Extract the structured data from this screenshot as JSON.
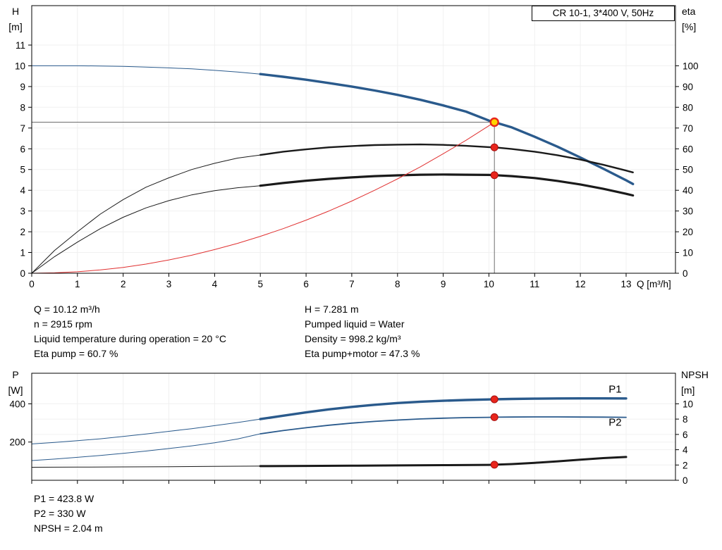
{
  "colors": {
    "curve_blue": "#2a5a8c",
    "curve_black": "#1a1a1a",
    "system_red": "#e03030",
    "marker_red": "#e8251c",
    "duty_yellow": "#ffd400",
    "crosshair": "#6e6e6e",
    "grid": "#f0f0f0"
  },
  "info_panel": {
    "left": [
      "Q = 10.12 m³/h",
      "n = 2915 rpm",
      "Liquid temperature during operation = 20 °C",
      "Eta pump = 60.7 %"
    ],
    "right": [
      "H = 7.281 m",
      "Pumped liquid = Water",
      "Density = 998.2 kg/m³",
      "Eta pump+motor = 47.3 %"
    ]
  },
  "results_panel": [
    "P1 = 423.8 W",
    "P2 = 330 W",
    "NPSH = 2.04 m"
  ],
  "chart_data": [
    {
      "type": "line",
      "title": "CR 10-1, 3*400 V, 50Hz",
      "x_axis": {
        "label": "Q [m³/h]",
        "min": 0,
        "max": 14.08,
        "ticks": [
          0,
          1,
          2,
          3,
          4,
          5,
          6,
          7,
          8,
          9,
          10,
          11,
          12,
          13
        ]
      },
      "y_left": {
        "label": "H [m]",
        "min": 0,
        "max": 12.9,
        "ticks": [
          0,
          1,
          2,
          3,
          4,
          5,
          6,
          7,
          8,
          9,
          10,
          11
        ]
      },
      "y_right": {
        "label": "eta [%]",
        "ticks": [
          0,
          10,
          20,
          30,
          40,
          50,
          60,
          70,
          80,
          90,
          100
        ],
        "scale_to_left": 0.1
      },
      "duty_point": {
        "q": 10.12,
        "h": 7.281
      },
      "series": [
        {
          "name": "qh-curve-low-flow",
          "color_key": "curve_blue",
          "width": 1,
          "scale": 1,
          "points": [
            [
              0,
              10.0
            ],
            [
              0.5,
              10.0
            ],
            [
              1,
              10.0
            ],
            [
              1.5,
              9.99
            ],
            [
              2,
              9.97
            ],
            [
              2.5,
              9.94
            ],
            [
              3,
              9.9
            ],
            [
              3.5,
              9.85
            ],
            [
              4,
              9.78
            ],
            [
              4.5,
              9.7
            ],
            [
              5,
              9.6
            ]
          ]
        },
        {
          "name": "qh-curve",
          "color_key": "curve_blue",
          "width": 3.4,
          "scale": 1,
          "points": [
            [
              5,
              9.6
            ],
            [
              5.5,
              9.47
            ],
            [
              6,
              9.33
            ],
            [
              6.5,
              9.17
            ],
            [
              7,
              9.0
            ],
            [
              7.5,
              8.81
            ],
            [
              8,
              8.6
            ],
            [
              8.5,
              8.36
            ],
            [
              9,
              8.09
            ],
            [
              9.5,
              7.79
            ],
            [
              10,
              7.36
            ],
            [
              10.12,
              7.281
            ],
            [
              10.5,
              7.03
            ],
            [
              11,
              6.58
            ],
            [
              11.5,
              6.1
            ],
            [
              12,
              5.58
            ],
            [
              12.5,
              5.04
            ],
            [
              13,
              4.48
            ],
            [
              13.15,
              4.3
            ]
          ]
        },
        {
          "name": "eta-pump-curve-low-flow",
          "color_key": "curve_black",
          "width": 1,
          "scale": 0.1,
          "points": [
            [
              0,
              0
            ],
            [
              0.5,
              11
            ],
            [
              1,
              20
            ],
            [
              1.5,
              28.5
            ],
            [
              2,
              35.5
            ],
            [
              2.5,
              41.5
            ],
            [
              3,
              46
            ],
            [
              3.5,
              50
            ],
            [
              4,
              53
            ],
            [
              4.5,
              55.5
            ],
            [
              5,
              57
            ]
          ]
        },
        {
          "name": "eta-pump-curve",
          "color_key": "curve_black",
          "width": 2.4,
          "scale": 0.1,
          "points": [
            [
              5,
              57
            ],
            [
              5.5,
              58.6
            ],
            [
              6,
              59.7
            ],
            [
              6.5,
              60.7
            ],
            [
              7,
              61.3
            ],
            [
              7.5,
              61.8
            ],
            [
              8,
              62
            ],
            [
              8.5,
              62.1
            ],
            [
              9,
              61.9
            ],
            [
              9.5,
              61.4
            ],
            [
              10,
              60.8
            ],
            [
              10.12,
              60.7
            ],
            [
              10.5,
              59.9
            ],
            [
              11,
              58.6
            ],
            [
              11.5,
              56.9
            ],
            [
              12,
              54.8
            ],
            [
              12.5,
              52.3
            ],
            [
              13,
              49.5
            ],
            [
              13.15,
              48.6
            ]
          ]
        },
        {
          "name": "eta-pump-motor-curve-low-flow",
          "color_key": "curve_black",
          "width": 1,
          "scale": 0.1,
          "points": [
            [
              0,
              0
            ],
            [
              0.5,
              8
            ],
            [
              1,
              15
            ],
            [
              1.5,
              21.5
            ],
            [
              2,
              27
            ],
            [
              2.5,
              31.5
            ],
            [
              3,
              35
            ],
            [
              3.5,
              37.8
            ],
            [
              4,
              39.8
            ],
            [
              4.5,
              41.2
            ],
            [
              5,
              42.2
            ]
          ]
        },
        {
          "name": "eta-pump-motor-curve",
          "color_key": "curve_black",
          "width": 3.2,
          "scale": 0.1,
          "points": [
            [
              5,
              42.2
            ],
            [
              5.5,
              43.5
            ],
            [
              6,
              44.6
            ],
            [
              6.5,
              45.5
            ],
            [
              7,
              46.2
            ],
            [
              7.5,
              46.8
            ],
            [
              8,
              47.2
            ],
            [
              8.5,
              47.5
            ],
            [
              9,
              47.6
            ],
            [
              9.5,
              47.5
            ],
            [
              10,
              47.4
            ],
            [
              10.12,
              47.3
            ],
            [
              10.5,
              46.8
            ],
            [
              11,
              45.9
            ],
            [
              11.5,
              44.5
            ],
            [
              12,
              42.8
            ],
            [
              12.5,
              40.7
            ],
            [
              13,
              38.3
            ],
            [
              13.15,
              37.5
            ]
          ]
        },
        {
          "name": "system-curve",
          "color_key": "system_red",
          "width": 1,
          "scale": 1,
          "points": [
            [
              0,
              0
            ],
            [
              0.5,
              0.02
            ],
            [
              1,
              0.07
            ],
            [
              1.5,
              0.16
            ],
            [
              2,
              0.28
            ],
            [
              2.5,
              0.44
            ],
            [
              3,
              0.64
            ],
            [
              3.5,
              0.87
            ],
            [
              4,
              1.14
            ],
            [
              4.5,
              1.44
            ],
            [
              5,
              1.78
            ],
            [
              5.5,
              2.15
            ],
            [
              6,
              2.56
            ],
            [
              6.5,
              3.0
            ],
            [
              7,
              3.48
            ],
            [
              7.5,
              4.0
            ],
            [
              8,
              4.55
            ],
            [
              8.5,
              5.13
            ],
            [
              9,
              5.76
            ],
            [
              9.5,
              6.41
            ],
            [
              10,
              7.11
            ],
            [
              10.12,
              7.281
            ]
          ]
        }
      ],
      "markers": [
        {
          "name": "duty-point-marker",
          "q": 10.12,
          "value": 7.281,
          "scale": 1,
          "style": "ring"
        },
        {
          "name": "eta-pump-point",
          "q": 10.12,
          "value": 60.7,
          "scale": 0.1,
          "style": "dot"
        },
        {
          "name": "eta-pump-motor-point",
          "q": 10.12,
          "value": 47.3,
          "scale": 0.1,
          "style": "dot"
        }
      ]
    },
    {
      "type": "line",
      "x_axis": {
        "min": 0,
        "max": 14.08,
        "ticks": [
          0,
          1,
          2,
          3,
          4,
          5,
          6,
          7,
          8,
          9,
          10,
          11,
          12,
          13
        ],
        "show_labels": false
      },
      "y_left": {
        "label": "P [W]",
        "min": 0,
        "max": 560,
        "ticks": [
          200,
          400
        ]
      },
      "y_right": {
        "label": "NPSH [m]",
        "ticks": [
          0,
          2,
          4,
          6,
          8,
          10
        ],
        "scale_to_left": 40
      },
      "series": [
        {
          "name": "p1-curve-low-flow",
          "color_key": "curve_blue",
          "width": 1,
          "scale": 1,
          "points": [
            [
              0,
              190
            ],
            [
              0.5,
              198
            ],
            [
              1,
              207
            ],
            [
              1.5,
              217
            ],
            [
              2,
              229
            ],
            [
              2.5,
              242
            ],
            [
              3,
              256
            ],
            [
              3.5,
              270
            ],
            [
              4,
              286
            ],
            [
              4.5,
              302
            ],
            [
              5,
              320
            ]
          ]
        },
        {
          "name": "p1-curve",
          "color_key": "curve_blue",
          "width": 3.4,
          "scale": 1,
          "points": [
            [
              5,
              320
            ],
            [
              5.5,
              338
            ],
            [
              6,
              355
            ],
            [
              6.5,
              371
            ],
            [
              7,
              384
            ],
            [
              7.5,
              395
            ],
            [
              8,
              404
            ],
            [
              8.5,
              411
            ],
            [
              9,
              416
            ],
            [
              9.5,
              420
            ],
            [
              10,
              423
            ],
            [
              10.12,
              423.8
            ],
            [
              10.5,
              425.5
            ],
            [
              11,
              427
            ],
            [
              11.5,
              428
            ],
            [
              12,
              428.5
            ],
            [
              12.5,
              428.5
            ],
            [
              13,
              428
            ]
          ]
        },
        {
          "name": "p2-curve-low-flow",
          "color_key": "curve_blue",
          "width": 1,
          "scale": 1,
          "points": [
            [
              0,
              103
            ],
            [
              0.5,
              111
            ],
            [
              1,
              120
            ],
            [
              1.5,
              130
            ],
            [
              2,
              141
            ],
            [
              2.5,
              153
            ],
            [
              3,
              166
            ],
            [
              3.5,
              180
            ],
            [
              4,
              196
            ],
            [
              4.5,
              216
            ],
            [
              5,
              243
            ]
          ]
        },
        {
          "name": "p2-curve",
          "color_key": "curve_blue",
          "width": 1.8,
          "scale": 1,
          "points": [
            [
              5,
              243
            ],
            [
              5.5,
              260
            ],
            [
              6,
              275
            ],
            [
              6.5,
              288
            ],
            [
              7,
              299
            ],
            [
              7.5,
              308
            ],
            [
              8,
              315
            ],
            [
              8.5,
              321
            ],
            [
              9,
              325
            ],
            [
              9.5,
              328
            ],
            [
              10,
              329.5
            ],
            [
              10.12,
              330
            ],
            [
              10.5,
              330.8
            ],
            [
              11,
              331.5
            ],
            [
              11.5,
              331.5
            ],
            [
              12,
              331
            ],
            [
              12.5,
              330.3
            ],
            [
              13,
              329.5
            ]
          ]
        },
        {
          "name": "npsh-curve-low-flow",
          "color_key": "curve_black",
          "width": 1,
          "scale": 40,
          "points": [
            [
              0,
              1.7
            ],
            [
              1,
              1.72
            ],
            [
              2,
              1.75
            ],
            [
              3,
              1.78
            ],
            [
              4,
              1.81
            ],
            [
              5,
              1.85
            ]
          ]
        },
        {
          "name": "npsh-curve",
          "color_key": "curve_black",
          "width": 3,
          "scale": 40,
          "points": [
            [
              5,
              1.85
            ],
            [
              6,
              1.88
            ],
            [
              7,
              1.91
            ],
            [
              8,
              1.94
            ],
            [
              9,
              1.98
            ],
            [
              10,
              2.02
            ],
            [
              10.12,
              2.04
            ],
            [
              10.5,
              2.12
            ],
            [
              11,
              2.28
            ],
            [
              11.5,
              2.48
            ],
            [
              12,
              2.7
            ],
            [
              12.5,
              2.9
            ],
            [
              13,
              3.05
            ]
          ]
        }
      ],
      "markers": [
        {
          "name": "p1-point",
          "q": 10.12,
          "value": 423.8,
          "scale": 1,
          "style": "dot"
        },
        {
          "name": "p2-point",
          "q": 10.12,
          "value": 330,
          "scale": 1,
          "style": "dot"
        },
        {
          "name": "npsh-point",
          "q": 10.12,
          "value": 2.04,
          "scale": 40,
          "style": "dot"
        }
      ],
      "curve_labels": [
        {
          "text": "P1",
          "q": 12.62,
          "value": 458
        },
        {
          "text": "P2",
          "q": 12.62,
          "value": 285
        }
      ]
    }
  ]
}
